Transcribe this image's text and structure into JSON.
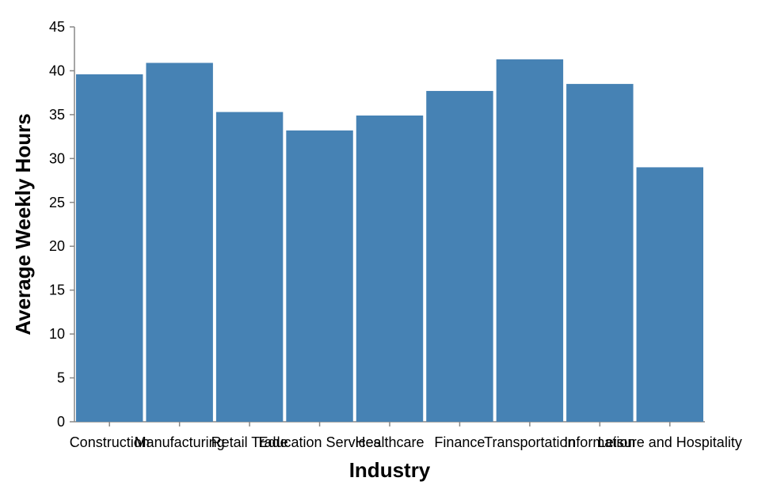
{
  "chart_data": {
    "type": "bar",
    "title": "",
    "xlabel": "Industry",
    "ylabel": "Average Weekly Hours",
    "categories": [
      "Construction",
      "Manufacturing",
      "Retail Trade",
      "Education Services",
      "Healthcare",
      "Finance",
      "Transportation",
      "Information",
      "Leisure and Hospitality"
    ],
    "values": [
      39.6,
      40.9,
      35.3,
      33.2,
      34.9,
      37.7,
      41.3,
      38.5,
      29.0
    ],
    "ylim": [
      0,
      45
    ],
    "yticks": [
      0,
      5,
      10,
      15,
      20,
      25,
      30,
      35,
      40,
      45
    ],
    "grid": false,
    "legend": "none",
    "bar_color": "#4682b4"
  }
}
